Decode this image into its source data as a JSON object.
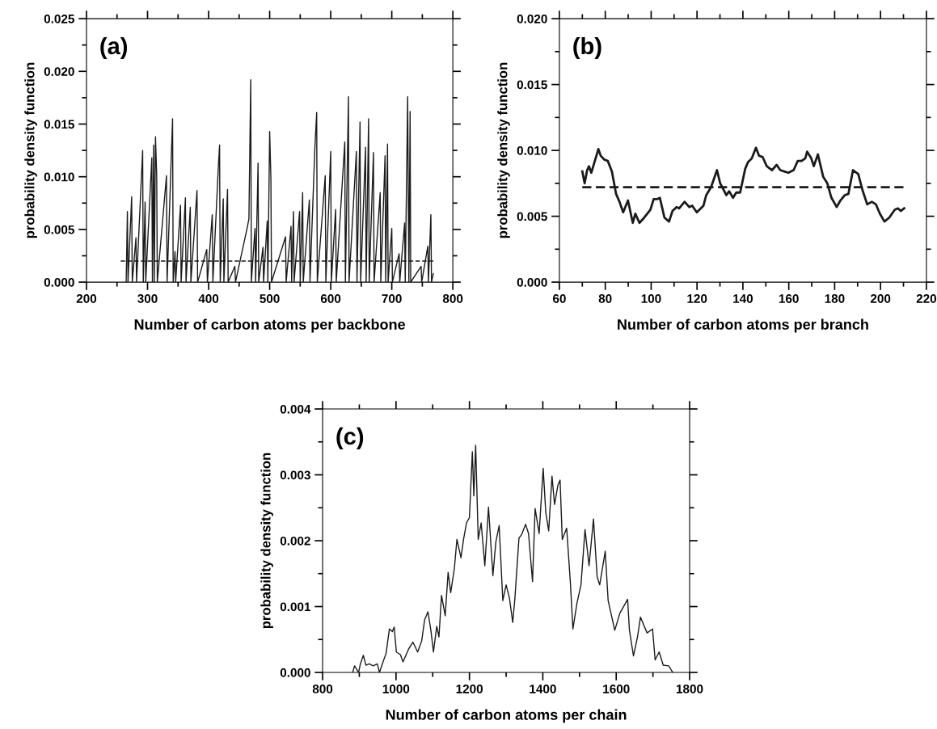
{
  "chart_data": [
    {
      "type": "line",
      "xlabel": "Number of carbon atoms per backbone",
      "ylabel": "probability density function",
      "annotations": [
        "(a)"
      ],
      "xlim": [
        200,
        800
      ],
      "xticks": [
        200,
        300,
        400,
        500,
        600,
        700,
        800
      ],
      "ylim": [
        0,
        0.025
      ],
      "yticks": [
        {
          "value": 0,
          "label": "0.000"
        },
        {
          "value": 0.005,
          "label": "0.005"
        },
        {
          "value": 0.01,
          "label": "0.010"
        },
        {
          "value": 0.015,
          "label": "0.015"
        },
        {
          "value": 0.02,
          "label": "0.020"
        },
        {
          "value": 0.025,
          "label": "0.025"
        }
      ],
      "series": [
        {
          "color": "#1a1a1a",
          "line_style": "solid",
          "x": [
            265,
            267,
            268,
            274,
            275,
            281,
            282,
            292,
            293,
            296,
            297,
            307,
            308,
            310,
            311,
            313,
            315,
            316,
            331,
            332,
            341,
            342,
            345,
            346,
            354,
            355,
            362,
            363,
            370,
            371,
            381,
            382,
            397,
            398,
            406,
            407,
            416,
            418,
            419,
            424,
            425,
            431,
            432,
            443,
            444,
            463,
            466,
            469,
            470,
            476,
            477,
            481,
            482,
            489,
            490,
            496,
            497,
            500,
            502,
            503,
            526,
            527,
            535,
            536,
            539,
            540,
            549,
            550,
            554,
            555,
            565,
            566,
            574,
            577,
            578,
            591,
            592,
            600,
            601,
            608,
            609,
            623,
            624,
            629,
            630,
            642,
            643,
            648,
            649,
            657,
            658,
            662,
            663,
            670,
            671,
            681,
            682,
            689,
            690,
            693,
            694,
            700,
            701,
            712,
            713,
            721,
            722,
            726,
            728,
            730,
            731,
            748,
            749,
            759,
            760,
            764,
            765,
            768
          ],
          "values": [
            0,
            0.0067,
            0,
            0.0081,
            0,
            0.0042,
            0,
            0.0125,
            0,
            0.0076,
            0,
            0.0118,
            0,
            0.013,
            0,
            0.0138,
            0.0101,
            0,
            0.0101,
            0,
            0.0155,
            0,
            0.0029,
            0,
            0.0073,
            0,
            0.008,
            0,
            0.0071,
            0,
            0.0087,
            0,
            0.0031,
            0,
            0.0064,
            0,
            0.011,
            0.013,
            0,
            0.0079,
            0,
            0.0088,
            0,
            0.0015,
            0,
            0.0051,
            0.006,
            0.0192,
            0,
            0.0051,
            0,
            0.0113,
            0,
            0.0033,
            0,
            0.0058,
            0,
            0.0143,
            0.0099,
            0,
            0.0043,
            0,
            0.0053,
            0,
            0.0067,
            0,
            0.0067,
            0,
            0.0085,
            0,
            0.0078,
            0,
            0.0127,
            0.0161,
            0,
            0.0101,
            0,
            0.0124,
            0,
            0.0069,
            0,
            0.0133,
            0,
            0.0176,
            0,
            0.0124,
            0,
            0.0152,
            0,
            0.0128,
            0,
            0.0155,
            0,
            0.0123,
            0,
            0.0085,
            0,
            0.012,
            0,
            0.0131,
            0,
            0.0051,
            0,
            0.0027,
            0,
            0.0056,
            0,
            0.0176,
            0,
            0.0162,
            0,
            0.0015,
            0,
            0.0034,
            0,
            0.0064,
            0,
            0.0008
          ]
        },
        {
          "color": "#1a1a1a",
          "line_style": "dashed",
          "x": [
            256,
            768
          ],
          "values": [
            0.002,
            0.002
          ]
        }
      ]
    },
    {
      "type": "line",
      "xlabel": "Number of carbon atoms per branch",
      "ylabel": "probability density function",
      "annotations": [
        "(b)"
      ],
      "xlim": [
        60,
        220
      ],
      "xticks": [
        60,
        80,
        100,
        120,
        140,
        160,
        180,
        200,
        220
      ],
      "ylim": [
        0,
        0.02
      ],
      "yticks": [
        {
          "value": 0,
          "label": "0.000"
        },
        {
          "value": 0.005,
          "label": "0.005"
        },
        {
          "value": 0.01,
          "label": "0.010"
        },
        {
          "value": 0.015,
          "label": "0.015"
        },
        {
          "value": 0.02,
          "label": "0.020"
        }
      ],
      "series": [
        {
          "color": "#1a1a1a",
          "line_style": "solid",
          "x": [
            70.0,
            71.0,
            72.1,
            72.9,
            73.9,
            75.8,
            77.0,
            78.0,
            79.6,
            81.1,
            82.9,
            84.7,
            86.2,
            87.8,
            89.9,
            92.0,
            93.1,
            94.9,
            97.0,
            99.7,
            101.1,
            102.6,
            103.8,
            105.8,
            107.8,
            109.3,
            111.1,
            112.2,
            114.6,
            116.6,
            117.9,
            119.9,
            122.8,
            124.0,
            126.1,
            128.7,
            130.1,
            132.8,
            134.0,
            135.7,
            137.1,
            138.8,
            141.0,
            142.2,
            143.9,
            145.7,
            147.0,
            148.6,
            150.4,
            152.7,
            154.7,
            156.3,
            158.0,
            159.8,
            162.1,
            163.9,
            165.6,
            167.2,
            168.0,
            169.8,
            170.9,
            172.7,
            175.0,
            176.8,
            178.6,
            180.9,
            182.5,
            184.4,
            186.0,
            188.0,
            190.3,
            192.1,
            194.2,
            196.2,
            198.0,
            199.7,
            201.7,
            203.8,
            206.2,
            207.6,
            208.8,
            210.3
          ],
          "values": [
            0.0084,
            0.0075,
            0.0085,
            0.0088,
            0.0083,
            0.0094,
            0.0101,
            0.0096,
            0.0093,
            0.0092,
            0.0084,
            0.0067,
            0.0061,
            0.0053,
            0.0062,
            0.0045,
            0.0052,
            0.0045,
            0.0049,
            0.0055,
            0.0063,
            0.0063,
            0.0064,
            0.0049,
            0.0046,
            0.0054,
            0.0057,
            0.0056,
            0.0061,
            0.0057,
            0.0058,
            0.0053,
            0.0058,
            0.0066,
            0.0072,
            0.0085,
            0.0075,
            0.0066,
            0.0069,
            0.0064,
            0.0068,
            0.0068,
            0.0086,
            0.0091,
            0.0094,
            0.0102,
            0.0096,
            0.0095,
            0.0088,
            0.0085,
            0.0089,
            0.0085,
            0.0084,
            0.0083,
            0.0085,
            0.0092,
            0.0092,
            0.0094,
            0.0099,
            0.0094,
            0.0088,
            0.0097,
            0.008,
            0.0075,
            0.0064,
            0.0057,
            0.0062,
            0.0066,
            0.0067,
            0.0085,
            0.0082,
            0.007,
            0.0059,
            0.0061,
            0.0059,
            0.0052,
            0.0046,
            0.0049,
            0.0055,
            0.0056,
            0.0054,
            0.0056
          ]
        },
        {
          "color": "#1a1a1a",
          "line_style": "dashed",
          "x": [
            70,
            210
          ],
          "values": [
            0.0072,
            0.0072
          ]
        }
      ]
    },
    {
      "type": "line",
      "xlabel": "Number of carbon atoms per chain",
      "ylabel": "probability density function",
      "annotations": [
        "(c)"
      ],
      "xlim": [
        800,
        1800
      ],
      "xticks": [
        800,
        1000,
        1200,
        1400,
        1600,
        1800
      ],
      "ylim": [
        0,
        0.004
      ],
      "yticks": [
        {
          "value": 0,
          "label": "0.000"
        },
        {
          "value": 0.001,
          "label": "0.001"
        },
        {
          "value": 0.002,
          "label": "0.002"
        },
        {
          "value": 0.003,
          "label": "0.003"
        },
        {
          "value": 0.004,
          "label": "0.004"
        }
      ],
      "series": [
        {
          "color": "#1a1a1a",
          "line_style": "solid",
          "x": [
            882,
            887,
            898,
            903,
            911,
            918,
            927,
            938,
            949,
            955,
            964,
            973,
            982,
            990,
            995,
            1001,
            1012,
            1019,
            1034,
            1046,
            1059,
            1070,
            1078,
            1087,
            1095,
            1102,
            1111,
            1117,
            1124,
            1134,
            1142,
            1149,
            1159,
            1166,
            1177,
            1184,
            1192,
            1200,
            1208,
            1212,
            1217,
            1224,
            1232,
            1242,
            1252,
            1264,
            1272,
            1281,
            1291,
            1300,
            1309,
            1318,
            1324,
            1335,
            1342,
            1353,
            1361,
            1372,
            1379,
            1390,
            1401,
            1408,
            1416,
            1425,
            1432,
            1441,
            1447,
            1453,
            1465,
            1475,
            1482,
            1493,
            1504,
            1515,
            1526,
            1538,
            1548,
            1555,
            1570,
            1578,
            1596,
            1610,
            1631,
            1636,
            1647,
            1658,
            1666,
            1684,
            1699,
            1706,
            1717,
            1728,
            1743,
            1754
          ],
          "values": [
            0,
            0.0001,
            0,
            0.00013,
            0.00026,
            0.00011,
            0.00013,
            0.0001,
            0.00013,
            0,
            0.00015,
            0.00029,
            0.00066,
            0.00062,
            0.00069,
            0.00031,
            0.00027,
            0.00016,
            0.00035,
            0.00046,
            0.00031,
            0.00048,
            0.0008,
            0.00092,
            0.00064,
            0.00031,
            0.0007,
            0.00054,
            0.00117,
            0.00086,
            0.00152,
            0.00121,
            0.00158,
            0.00202,
            0.00174,
            0.00202,
            0.00227,
            0.00235,
            0.00335,
            0.00268,
            0.00345,
            0.00202,
            0.00227,
            0.00162,
            0.00251,
            0.00147,
            0.00198,
            0.00223,
            0.00109,
            0.00133,
            0.00113,
            0.00076,
            0.00113,
            0.00204,
            0.00209,
            0.00225,
            0.00211,
            0.00138,
            0.00249,
            0.00211,
            0.0031,
            0.00243,
            0.00215,
            0.00298,
            0.00255,
            0.00284,
            0.00292,
            0.00202,
            0.00219,
            0.00137,
            0.00066,
            0.00105,
            0.00133,
            0.00217,
            0.00162,
            0.00233,
            0.00145,
            0.00133,
            0.00184,
            0.00109,
            0.00064,
            0.0009,
            0.00111,
            0.00064,
            0.00025,
            0.00054,
            0.00084,
            0.0006,
            0.00066,
            0.00019,
            0.00031,
            0.00011,
            0.0001,
            0
          ]
        }
      ]
    }
  ]
}
